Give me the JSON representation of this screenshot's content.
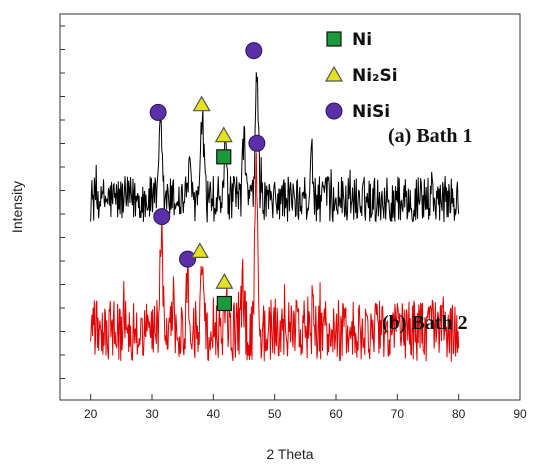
{
  "chart_data": {
    "type": "line",
    "xlabel": "2 Theta",
    "ylabel": "Intensity",
    "xlim": [
      15,
      90
    ],
    "xticks": [
      20,
      30,
      40,
      50,
      60,
      70,
      80,
      90
    ],
    "series": [
      {
        "name": "(a) Bath 1",
        "color": "#000000",
        "x_range": [
          20,
          80
        ],
        "baseline": 0.52,
        "noise_amplitude": 0.06,
        "peaks": [
          {
            "x": 31.4,
            "height": 0.7
          },
          {
            "x": 36.0,
            "height": 0.6
          },
          {
            "x": 38.2,
            "height": 0.74
          },
          {
            "x": 42.0,
            "height": 0.66
          },
          {
            "x": 45.0,
            "height": 0.68
          },
          {
            "x": 47.1,
            "height": 0.86
          },
          {
            "x": 56.0,
            "height": 0.63
          }
        ]
      },
      {
        "name": "(b) Bath 2",
        "color": "#e00000",
        "x_range": [
          20,
          80
        ],
        "baseline": 0.18,
        "noise_amplitude": 0.08,
        "peaks": [
          {
            "x": 31.5,
            "height": 0.43
          },
          {
            "x": 35.8,
            "height": 0.32
          },
          {
            "x": 38.2,
            "height": 0.36
          },
          {
            "x": 42.0,
            "height": 0.28
          },
          {
            "x": 44.8,
            "height": 0.3
          },
          {
            "x": 47.0,
            "height": 0.62
          },
          {
            "x": 56.3,
            "height": 0.28
          }
        ]
      }
    ],
    "legend": [
      {
        "label": "Ni",
        "marker": "square",
        "color": "#1a9a3a"
      },
      {
        "label": "Ni₂Si",
        "marker": "triangle",
        "color": "#e6e21e"
      },
      {
        "label": "NiSi",
        "marker": "circle",
        "color": "#5b2fa8"
      }
    ],
    "panel_labels": [
      "(a) Bath 1",
      "(b) Bath 2"
    ],
    "phase_markers": [
      {
        "series": "(a) Bath 1",
        "x": 31.0,
        "phase": "NiSi"
      },
      {
        "series": "(a) Bath 1",
        "x": 38.1,
        "phase": "Ni₂Si"
      },
      {
        "series": "(a) Bath 1",
        "x": 41.7,
        "phase": "Ni₂Si"
      },
      {
        "series": "(a) Bath 1",
        "x": 41.7,
        "phase": "Ni"
      },
      {
        "series": "(a) Bath 1",
        "x": 46.6,
        "phase": "NiSi"
      },
      {
        "series": "(b) Bath 2",
        "x": 31.6,
        "phase": "NiSi"
      },
      {
        "series": "(b) Bath 2",
        "x": 35.8,
        "phase": "NiSi"
      },
      {
        "series": "(b) Bath 2",
        "x": 37.8,
        "phase": "Ni₂Si"
      },
      {
        "series": "(b) Bath 2",
        "x": 41.8,
        "phase": "Ni₂Si"
      },
      {
        "series": "(b) Bath 2",
        "x": 41.8,
        "phase": "Ni"
      },
      {
        "series": "(b) Bath 2",
        "x": 47.1,
        "phase": "NiSi"
      }
    ]
  }
}
